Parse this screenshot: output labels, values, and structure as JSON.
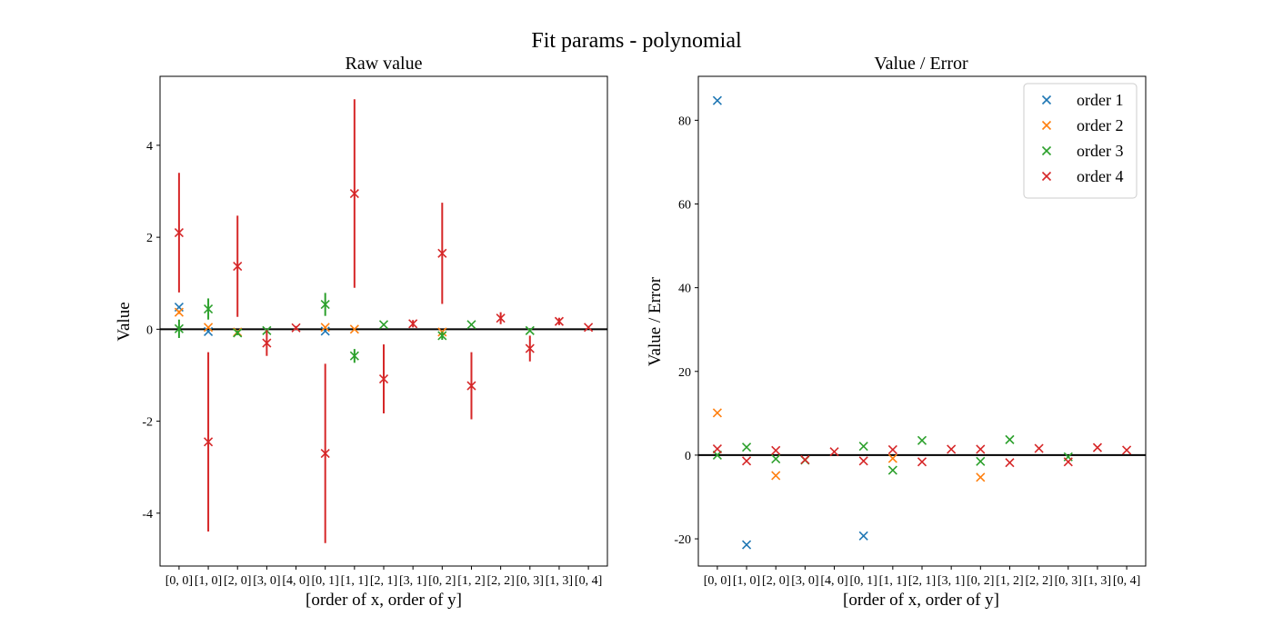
{
  "chart_data": {
    "type": "scatter",
    "suptitle": "Fit params - polynomial",
    "categories": [
      "[0, 0]",
      "[1, 0]",
      "[2, 0]",
      "[3, 0]",
      "[4, 0]",
      "[0, 1]",
      "[1, 1]",
      "[2, 1]",
      "[3, 1]",
      "[0, 2]",
      "[1, 2]",
      "[2, 2]",
      "[0, 3]",
      "[1, 3]",
      "[0, 4]"
    ],
    "colors": {
      "order 1": "#1f77b4",
      "order 2": "#ff7f0e",
      "order 3": "#2ca02c",
      "order 4": "#d62728"
    },
    "panels": [
      {
        "title": "Raw value",
        "xlabel": "[order of x, order of y]",
        "ylabel": "Value",
        "ylim": [
          -5.15,
          5.5
        ],
        "yticks": [
          -4,
          -2,
          0,
          2,
          4
        ],
        "hline": 0,
        "legend": false,
        "series": [
          {
            "name": "order 1",
            "points": [
              {
                "i": 0,
                "y": 0.48,
                "err": 0.0
              },
              {
                "i": 1,
                "y": -0.05,
                "err": 0.0
              },
              {
                "i": 5,
                "y": -0.04,
                "err": 0.0
              }
            ]
          },
          {
            "name": "order 2",
            "points": [
              {
                "i": 0,
                "y": 0.37,
                "err": 0.04
              },
              {
                "i": 1,
                "y": 0.04,
                "err": 0.0
              },
              {
                "i": 2,
                "y": -0.06,
                "err": 0.02
              },
              {
                "i": 5,
                "y": 0.04,
                "err": 0.0
              },
              {
                "i": 6,
                "y": 0.0,
                "err": 0.0
              },
              {
                "i": 9,
                "y": -0.06,
                "err": 0.0
              }
            ]
          },
          {
            "name": "order 3",
            "points": [
              {
                "i": 0,
                "y": 0.01,
                "err": 0.2
              },
              {
                "i": 1,
                "y": 0.44,
                "err": 0.23
              },
              {
                "i": 2,
                "y": -0.08,
                "err": 0.05
              },
              {
                "i": 3,
                "y": -0.03,
                "err": 0.03
              },
              {
                "i": 5,
                "y": 0.54,
                "err": 0.25
              },
              {
                "i": 6,
                "y": -0.58,
                "err": 0.15
              },
              {
                "i": 7,
                "y": 0.1,
                "err": 0.02
              },
              {
                "i": 9,
                "y": -0.14,
                "err": 0.09
              },
              {
                "i": 10,
                "y": 0.1,
                "err": 0.02
              },
              {
                "i": 12,
                "y": -0.03,
                "err": 0.03
              }
            ]
          },
          {
            "name": "order 4",
            "points": [
              {
                "i": 0,
                "y": 2.1,
                "err": 1.3
              },
              {
                "i": 1,
                "y": -2.45,
                "err": 1.95
              },
              {
                "i": 2,
                "y": 1.37,
                "err": 1.1
              },
              {
                "i": 3,
                "y": -0.3,
                "err": 0.28
              },
              {
                "i": 4,
                "y": 0.03,
                "err": 0.04
              },
              {
                "i": 5,
                "y": -2.7,
                "err": 1.95
              },
              {
                "i": 6,
                "y": 2.95,
                "err": 2.05
              },
              {
                "i": 7,
                "y": -1.08,
                "err": 0.75
              },
              {
                "i": 8,
                "y": 0.12,
                "err": 0.08
              },
              {
                "i": 9,
                "y": 1.65,
                "err": 1.1
              },
              {
                "i": 10,
                "y": -1.23,
                "err": 0.73
              },
              {
                "i": 11,
                "y": 0.24,
                "err": 0.13
              },
              {
                "i": 12,
                "y": -0.42,
                "err": 0.28
              },
              {
                "i": 13,
                "y": 0.17,
                "err": 0.08
              },
              {
                "i": 14,
                "y": 0.04,
                "err": 0.03
              }
            ]
          }
        ]
      },
      {
        "title": "Value / Error",
        "xlabel": "[order of x, order of y]",
        "ylabel": "Value / Error",
        "ylim": [
          -26.5,
          90.5
        ],
        "yticks": [
          -20,
          0,
          20,
          40,
          60,
          80
        ],
        "hline": 0,
        "legend": true,
        "legend_position": "top-right",
        "series": [
          {
            "name": "order 1",
            "points": [
              {
                "i": 0,
                "y": 84.7
              },
              {
                "i": 1,
                "y": -21.4
              },
              {
                "i": 5,
                "y": -19.3
              }
            ]
          },
          {
            "name": "order 2",
            "points": [
              {
                "i": 0,
                "y": 10.1
              },
              {
                "i": 2,
                "y": -4.9
              },
              {
                "i": 6,
                "y": -0.8
              },
              {
                "i": 9,
                "y": -5.3
              }
            ]
          },
          {
            "name": "order 3",
            "points": [
              {
                "i": 0,
                "y": 0.0
              },
              {
                "i": 1,
                "y": 1.9
              },
              {
                "i": 2,
                "y": -0.9
              },
              {
                "i": 3,
                "y": -1.2
              },
              {
                "i": 5,
                "y": 2.1
              },
              {
                "i": 6,
                "y": -3.6
              },
              {
                "i": 7,
                "y": 3.5
              },
              {
                "i": 9,
                "y": -1.5
              },
              {
                "i": 10,
                "y": 3.7
              },
              {
                "i": 12,
                "y": -0.4
              }
            ]
          },
          {
            "name": "order 4",
            "points": [
              {
                "i": 0,
                "y": 1.5
              },
              {
                "i": 1,
                "y": -1.4
              },
              {
                "i": 2,
                "y": 1.1
              },
              {
                "i": 3,
                "y": -1.1
              },
              {
                "i": 4,
                "y": 0.8
              },
              {
                "i": 5,
                "y": -1.4
              },
              {
                "i": 6,
                "y": 1.3
              },
              {
                "i": 7,
                "y": -1.6
              },
              {
                "i": 8,
                "y": 1.4
              },
              {
                "i": 9,
                "y": 1.4
              },
              {
                "i": 10,
                "y": -1.8
              },
              {
                "i": 11,
                "y": 1.6
              },
              {
                "i": 12,
                "y": -1.6
              },
              {
                "i": 13,
                "y": 1.8
              },
              {
                "i": 14,
                "y": 1.2
              }
            ]
          }
        ]
      }
    ]
  }
}
